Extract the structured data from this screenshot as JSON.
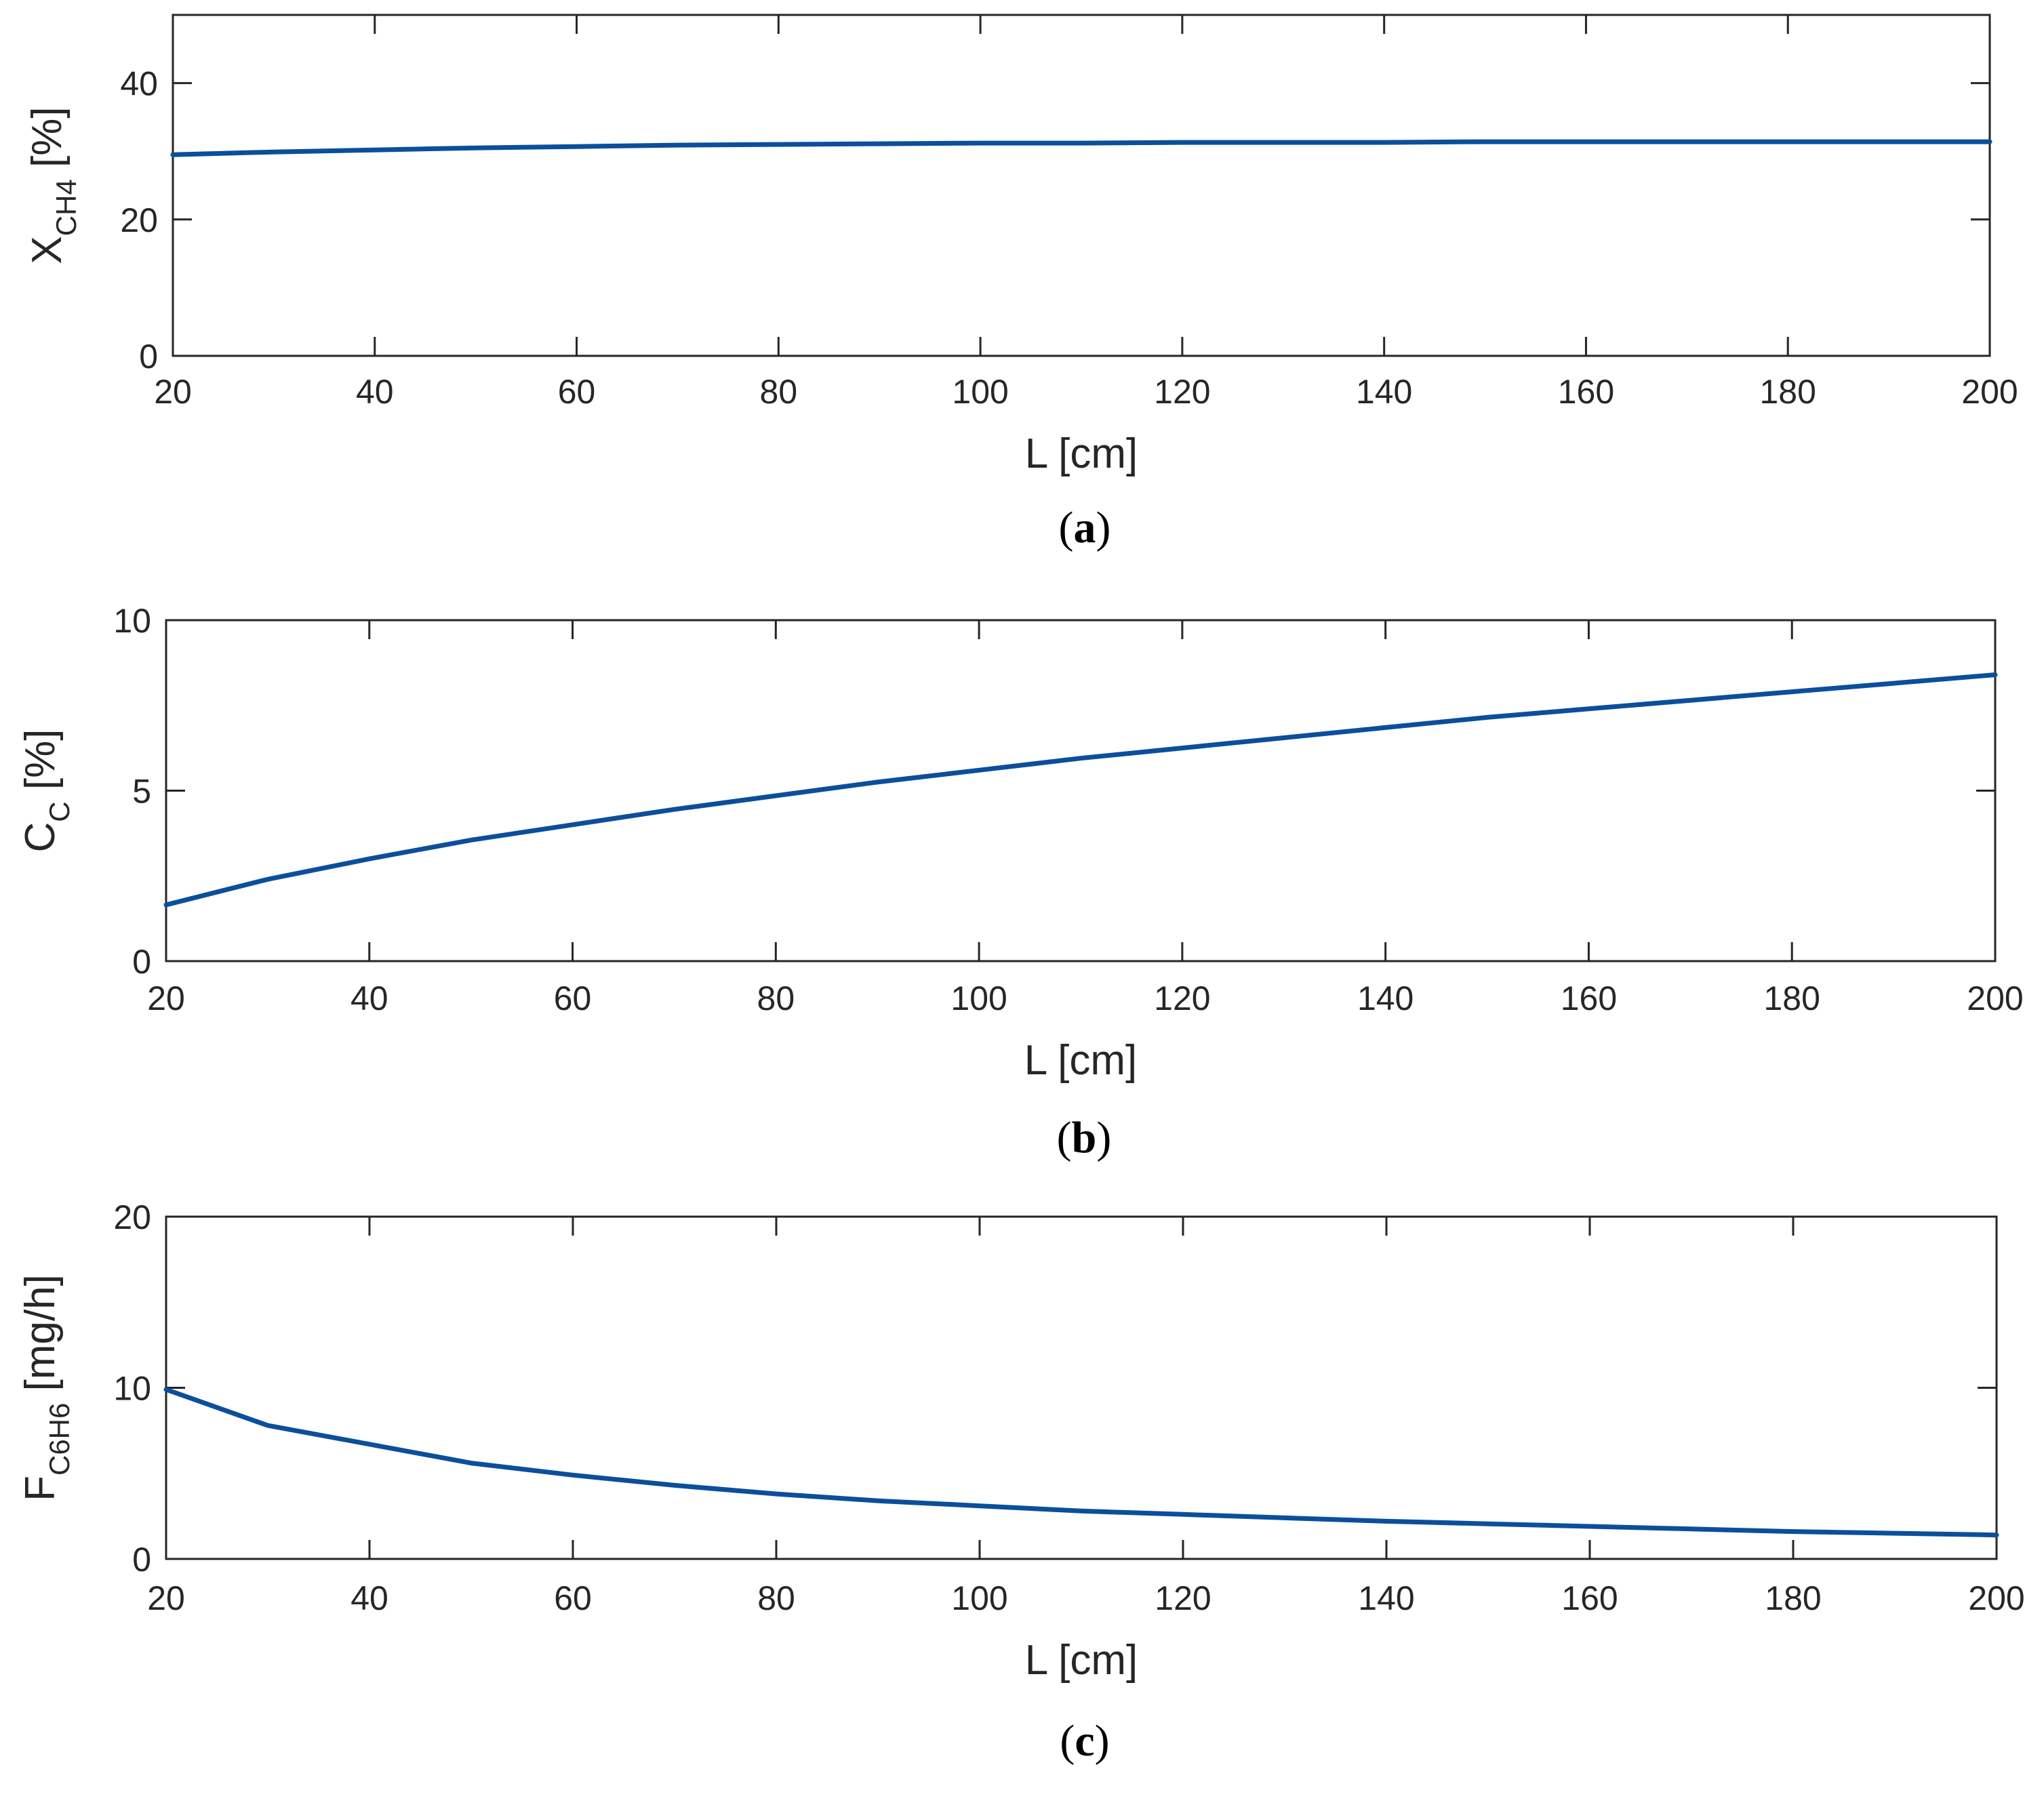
{
  "colors": {
    "series": "#0b4f9c",
    "axis": "#262626"
  },
  "chart_data": [
    {
      "type": "line",
      "panel": "a",
      "xlabel": "L [cm]",
      "ylabel_main": "X",
      "ylabel_sub": "CH4",
      "ylabel_unit": " [%]",
      "xlim": [
        20,
        200
      ],
      "ylim": [
        0,
        50
      ],
      "xticks": [
        20,
        40,
        60,
        80,
        100,
        120,
        140,
        160,
        180,
        200
      ],
      "yticks": [
        0,
        20,
        40
      ],
      "grid": false,
      "caption_open": "(",
      "caption_letter": "a",
      "caption_close": ")",
      "series": [
        {
          "x": [
            20,
            30,
            40,
            50,
            60,
            70,
            80,
            90,
            100,
            110,
            120,
            130,
            140,
            150,
            160,
            170,
            180,
            190,
            200
          ],
          "y": [
            29.5,
            29.9,
            30.2,
            30.5,
            30.7,
            30.9,
            31.0,
            31.1,
            31.2,
            31.2,
            31.3,
            31.3,
            31.3,
            31.4,
            31.4,
            31.4,
            31.4,
            31.4,
            31.4
          ]
        }
      ]
    },
    {
      "type": "line",
      "panel": "b",
      "xlabel": "L [cm]",
      "ylabel_main": "C",
      "ylabel_sub": "C",
      "ylabel_unit": " [%]",
      "xlim": [
        20,
        200
      ],
      "ylim": [
        0,
        10
      ],
      "xticks": [
        20,
        40,
        60,
        80,
        100,
        120,
        140,
        160,
        180,
        200
      ],
      "yticks": [
        0,
        5,
        10
      ],
      "grid": false,
      "caption_open": "(",
      "caption_letter": "b",
      "caption_close": ")",
      "series": [
        {
          "x": [
            20,
            30,
            40,
            50,
            60,
            70,
            80,
            90,
            100,
            110,
            120,
            130,
            140,
            150,
            160,
            170,
            180,
            190,
            200
          ],
          "y": [
            1.65,
            2.4,
            3.0,
            3.55,
            4.0,
            4.45,
            4.85,
            5.25,
            5.6,
            5.95,
            6.25,
            6.55,
            6.85,
            7.15,
            7.4,
            7.65,
            7.9,
            8.15,
            8.4
          ]
        }
      ]
    },
    {
      "type": "line",
      "panel": "c",
      "xlabel": "L [cm]",
      "ylabel_main": "F",
      "ylabel_sub": "C6H6",
      "ylabel_unit": " [mg/h]",
      "xlim": [
        20,
        200
      ],
      "ylim": [
        0,
        20
      ],
      "xticks": [
        20,
        40,
        60,
        80,
        100,
        120,
        140,
        160,
        180,
        200
      ],
      "yticks": [
        0,
        10,
        20
      ],
      "grid": false,
      "caption_open": "(",
      "caption_letter": "c",
      "caption_close": ")",
      "series": [
        {
          "x": [
            20,
            30,
            40,
            50,
            60,
            70,
            80,
            90,
            100,
            110,
            120,
            130,
            140,
            150,
            160,
            170,
            180,
            190,
            200
          ],
          "y": [
            9.9,
            7.8,
            6.7,
            5.6,
            4.9,
            4.3,
            3.8,
            3.4,
            3.1,
            2.8,
            2.6,
            2.4,
            2.2,
            2.05,
            1.9,
            1.75,
            1.6,
            1.5,
            1.4
          ]
        }
      ]
    }
  ]
}
